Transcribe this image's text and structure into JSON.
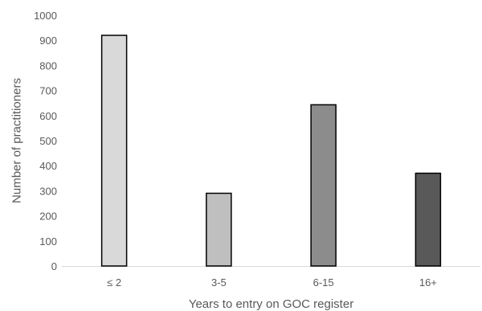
{
  "chart_data": {
    "type": "bar",
    "title": "",
    "xlabel": "Years to entry on GOC register",
    "ylabel": "Number of practitioners",
    "categories": [
      "≤ 2",
      "3-5",
      "6-15",
      "16+"
    ],
    "values": [
      920,
      290,
      643,
      370
    ],
    "bar_colors": [
      "#d9d9d9",
      "#bfbfbf",
      "#8c8c8c",
      "#595959"
    ],
    "ylim": [
      0,
      1000
    ],
    "yticks": [
      0,
      100,
      200,
      300,
      400,
      500,
      600,
      700,
      800,
      900,
      1000
    ],
    "grid": false,
    "legend": "none"
  }
}
